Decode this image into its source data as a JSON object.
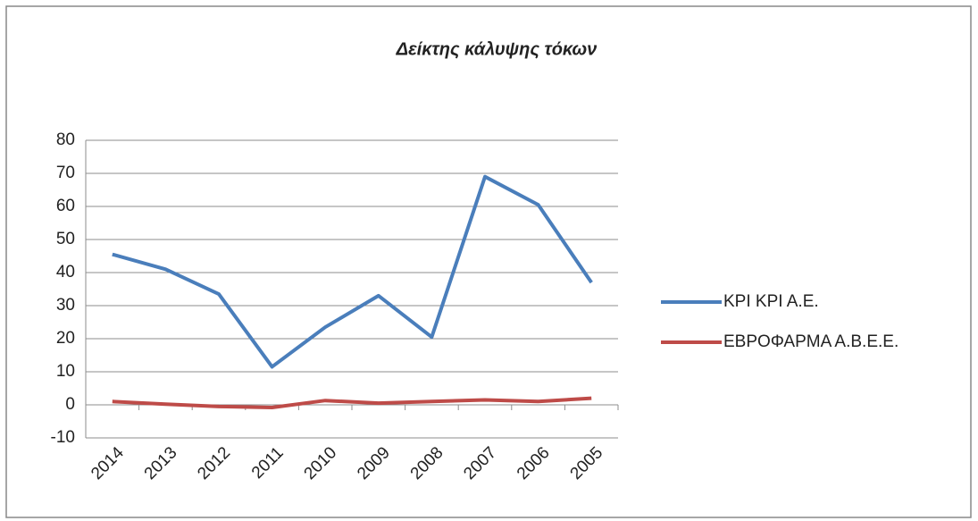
{
  "chart_data": {
    "type": "line",
    "title": "Δείκτης κάλυψης τόκων",
    "categories": [
      "2014",
      "2013",
      "2012",
      "2011",
      "2010",
      "2009",
      "2008",
      "2007",
      "2006",
      "2005"
    ],
    "series": [
      {
        "name": "KPI KPI A.E.",
        "color": "#4a7ebb",
        "values": [
          45.5,
          41,
          33.5,
          11.5,
          23.5,
          33,
          20.5,
          69,
          60.5,
          37
        ]
      },
      {
        "name": "ΕΒΡΟΦΑΡΜΑ Α.Β.Ε.Ε.",
        "color": "#be4b48",
        "values": [
          1,
          0.2,
          -0.5,
          -0.8,
          1.3,
          0.5,
          1,
          1.5,
          1,
          2
        ]
      }
    ],
    "ylim": [
      -10,
      80
    ],
    "yticks": [
      -10,
      0,
      10,
      20,
      30,
      40,
      50,
      60,
      70,
      80
    ],
    "grid": true,
    "legend": "right"
  }
}
